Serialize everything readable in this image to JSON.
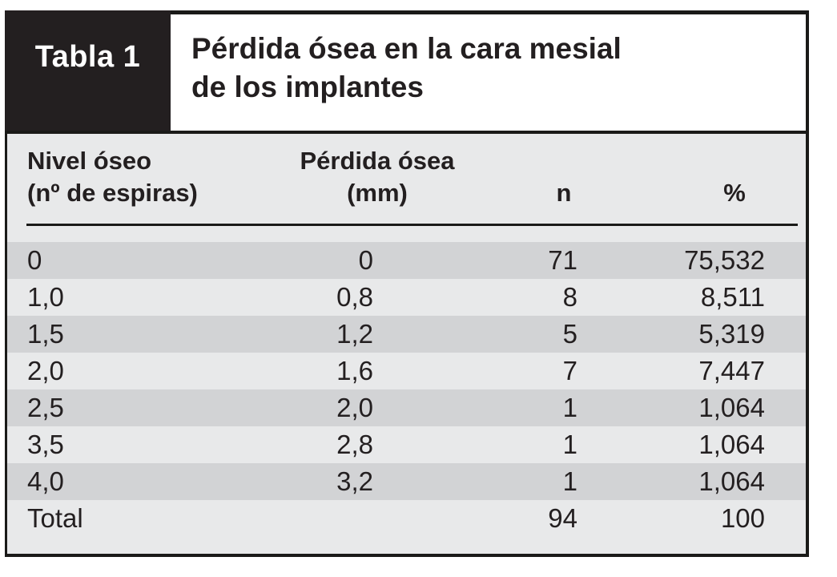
{
  "figure": {
    "tag": "Tabla 1",
    "title_line1": "Pérdida ósea en la cara mesial",
    "title_line2": "de los implantes"
  },
  "table": {
    "headers": {
      "col1_line1": "Nivel óseo",
      "col1_line2": "(nº de espiras)",
      "col2_line1": "Pérdida ósea",
      "col2_line2": "(mm)",
      "col3": "n",
      "col4": "%"
    },
    "rows": [
      [
        "0",
        "0",
        "71",
        "75,532"
      ],
      [
        "1,0",
        "0,8",
        "8",
        "8,511"
      ],
      [
        "1,5",
        "1,2",
        "5",
        "5,319"
      ],
      [
        "2,0",
        "1,6",
        "7",
        "7,447"
      ],
      [
        "2,5",
        "2,0",
        "1",
        "1,064"
      ],
      [
        "3,5",
        "2,8",
        "1",
        "1,064"
      ],
      [
        "4,0",
        "3,2",
        "1",
        "1,064"
      ],
      [
        "Total",
        "",
        "94",
        "100"
      ]
    ]
  },
  "colors": {
    "ink": "#231f20",
    "tag_box_bg": "#231f20",
    "tag_box_text": "#ffffff",
    "row_dark": "#d2d3d5",
    "row_light": "#e8e9ea",
    "border": "#1a1a18"
  },
  "chart_data": {
    "type": "table",
    "title": "Tabla 1 — Pérdida ósea en la cara mesial de los implantes",
    "columns": [
      "Nivel óseo (nº de espiras)",
      "Pérdida ósea (mm)",
      "n",
      "%"
    ],
    "rows": [
      [
        "0",
        "0",
        "71",
        "75,532"
      ],
      [
        "1,0",
        "0,8",
        "8",
        "8,511"
      ],
      [
        "1,5",
        "1,2",
        "5",
        "5,319"
      ],
      [
        "2,0",
        "1,6",
        "7",
        "7,447"
      ],
      [
        "2,5",
        "2,0",
        "1",
        "1,064"
      ],
      [
        "3,5",
        "2,8",
        "1",
        "1,064"
      ],
      [
        "4,0",
        "3,2",
        "1",
        "1,064"
      ],
      [
        "Total",
        "",
        "94",
        "100"
      ]
    ]
  }
}
